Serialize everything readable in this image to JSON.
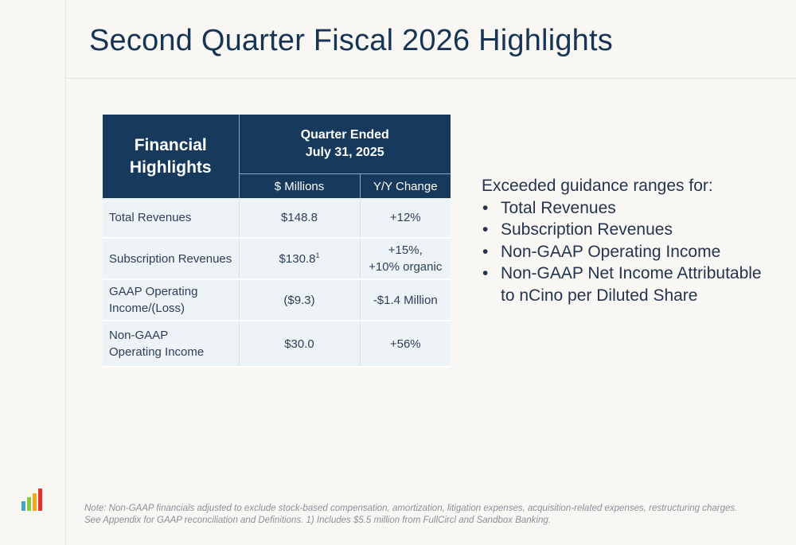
{
  "title": "Second Quarter Fiscal 2026 Highlights",
  "table": {
    "header_main": "Financial Highlights",
    "header_group_line1": "Quarter Ended",
    "header_group_line2": "July 31, 2025",
    "col1": "$ Millions",
    "col2": "Y/Y Change",
    "rows": [
      {
        "label": "Total Revenues",
        "value": "$148.8",
        "change": "+12%"
      },
      {
        "label": "Subscription Revenues",
        "value": "$130.8",
        "value_sup": "1",
        "change": "+15%,",
        "change_line2": "+10% organic"
      },
      {
        "label": "GAAP Operating",
        "label_line2": "Income/(Loss)",
        "value": "($9.3)",
        "change": "-$1.4 Million"
      },
      {
        "label": "Non-GAAP",
        "label_line2": "Operating Income",
        "value": "$30.0",
        "change": "+56%"
      }
    ]
  },
  "guidance": {
    "intro": "Exceeded guidance ranges for:",
    "bullet_char": "•",
    "items": [
      "Total Revenues",
      "Subscription Revenues",
      "Non-GAAP Operating Income",
      "Non-GAAP Net Income Attributable",
      "to nCino per Diluted Share"
    ]
  },
  "logo": {
    "icon": "bar-chart-logo-icon",
    "colors": [
      "#3fa9c9",
      "#8cc63f",
      "#f5a623",
      "#e8312f"
    ]
  },
  "note": {
    "line1": "Note: Non-GAAP financials adjusted to exclude stock-based compensation, amortization, litigation expenses, acquisition-related expenses, restructuring charges.",
    "line2": "See Appendix for GAAP reconciliation and Definitions. 1) Includes $5.5 million from FullCircl and Sandbox Banking."
  },
  "colors": {
    "header_bg": "#173a5c",
    "row_bg": "#eef3f8",
    "title": "#173454"
  }
}
